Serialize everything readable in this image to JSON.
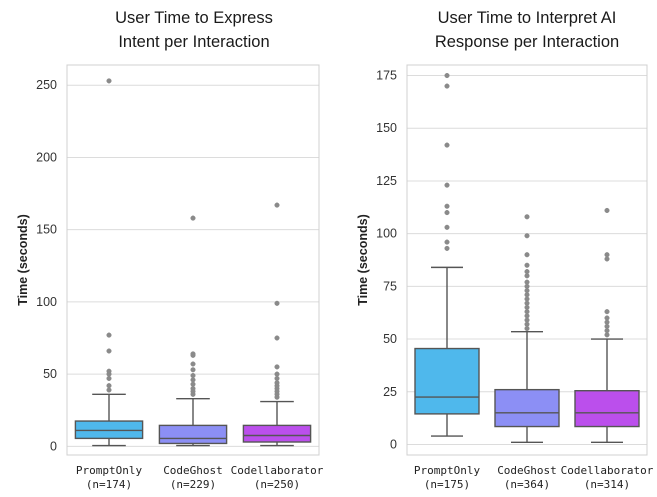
{
  "chart_data": [
    {
      "type": "box",
      "title": [
        "User Time to Express",
        "Intent per Interaction"
      ],
      "ylabel": "Time (seconds)",
      "ylim": [
        -6,
        264
      ],
      "yticks": [
        0,
        50,
        100,
        150,
        200,
        250
      ],
      "grid": "horizontal",
      "categories": [
        {
          "name": "PromptOnly",
          "n": "(n=174)",
          "color": "#4fb8ec",
          "whislo": 0.5,
          "q1": 5.5,
          "median": 11,
          "q3": 17.5,
          "whishi": 36,
          "outliers": [
            39,
            42,
            47,
            50,
            52,
            66,
            77,
            253
          ]
        },
        {
          "name": "CodeGhost",
          "n": "(n=229)",
          "color": "#8c8ff5",
          "whislo": 0.5,
          "q1": 2,
          "median": 5.5,
          "q3": 14.5,
          "whishi": 33,
          "outliers": [
            36,
            38,
            40,
            43,
            46,
            49,
            53,
            57,
            63,
            64,
            158
          ]
        },
        {
          "name": "Codellaborator",
          "n": "(n=250)",
          "color": "#bb4fec",
          "whislo": 0.5,
          "q1": 3,
          "median": 7.5,
          "q3": 14.5,
          "whishi": 31,
          "outliers": [
            34,
            36,
            38,
            40,
            42,
            44,
            47,
            50,
            55,
            75,
            99,
            167
          ]
        }
      ]
    },
    {
      "type": "box",
      "title": [
        "User Time to Interpret AI",
        "Response per Interaction"
      ],
      "ylabel": "Time (seconds)",
      "ylim": [
        -5,
        180
      ],
      "yticks": [
        0,
        25,
        50,
        75,
        100,
        125,
        150,
        175
      ],
      "grid": "horizontal",
      "categories": [
        {
          "name": "PromptOnly",
          "n": "(n=175)",
          "color": "#4fb8ec",
          "whislo": 4,
          "q1": 14.5,
          "median": 22.5,
          "q3": 45.5,
          "whishi": 84,
          "outliers": [
            93,
            96,
            103,
            110,
            113,
            123,
            142,
            170,
            175
          ]
        },
        {
          "name": "CodeGhost",
          "n": "(n=364)",
          "color": "#8c8ff5",
          "whislo": 1,
          "q1": 8.5,
          "median": 15,
          "q3": 26,
          "whishi": 53.5,
          "outliers": [
            55,
            57,
            59,
            61,
            63,
            65,
            67,
            69,
            71,
            73,
            75,
            77,
            80,
            82,
            85,
            90,
            99,
            108
          ]
        },
        {
          "name": "Codellaborator",
          "n": "(n=314)",
          "color": "#bb4fec",
          "whislo": 1,
          "q1": 8.5,
          "median": 15,
          "q3": 25.5,
          "whishi": 50,
          "outliers": [
            52,
            54,
            56,
            58,
            60,
            63,
            88,
            90,
            111
          ]
        }
      ]
    }
  ]
}
